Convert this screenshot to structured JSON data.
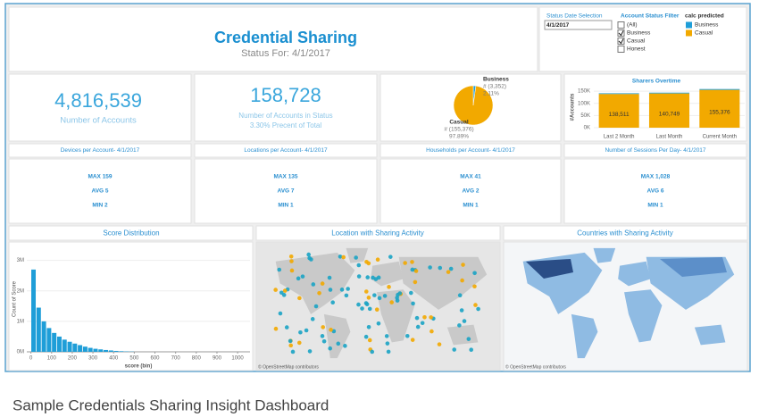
{
  "header": {
    "title": "Credential Sharing",
    "subtitle": "Status For: 4/1/2017"
  },
  "filters": {
    "date_label": "Status Date Selection",
    "date_value": "4/1/2017",
    "status_label": "Account Status Filter",
    "status_options": [
      "(All)",
      "Business",
      "Casual",
      "Honest"
    ],
    "status_checked": [
      false,
      true,
      true,
      false
    ],
    "legend_label": "calc predicted",
    "legend_items": [
      {
        "name": "Business",
        "color": "#1f9ed8"
      },
      {
        "name": "Casual",
        "color": "#f2a900"
      }
    ]
  },
  "kpis": [
    {
      "value": "4,816,539",
      "label": "Number of Accounts"
    },
    {
      "value": "158,728",
      "label": "Number of Accounts in Status",
      "sub": "3.30% Precent of Total"
    }
  ],
  "stats": [
    {
      "title": "Devices per Account- 4/1/2017",
      "max": "MAX 159",
      "avg": "AVG 5",
      "min": "MIN 2"
    },
    {
      "title": "Locations per Account- 4/1/2017",
      "max": "MAX 135",
      "avg": "AVG 7",
      "min": "MIN 1"
    },
    {
      "title": "Households per Account- 4/1/2017",
      "max": "MAX 41",
      "avg": "AVG 2",
      "min": "MIN 1"
    },
    {
      "title": "Number of Sessions Per Day- 4/1/2017",
      "max": "MAX 1,028",
      "avg": "AVG 6",
      "min": "MIN 1"
    }
  ],
  "chart_data": [
    {
      "type": "pie",
      "categories": [
        "Business",
        "Casual"
      ],
      "values": [
        3352,
        155376
      ],
      "value_labels": [
        "# (3,352)",
        "# (155,376)"
      ],
      "percent_labels": [
        "2.11%",
        "97.89%"
      ],
      "colors": [
        "#1f9ed8",
        "#f2a900"
      ]
    },
    {
      "type": "bar",
      "title": "Sharers Overtime",
      "y_label": "#Accounts",
      "stacked": true,
      "categories": [
        "Last 2 Month",
        "Last Month",
        "Current Month"
      ],
      "series": [
        {
          "name": "Casual",
          "color": "#f2a900",
          "values": [
            138511,
            140749,
            155376
          ],
          "value_labels": [
            "138,511",
            "140,749",
            "155,376"
          ]
        },
        {
          "name": "Business",
          "color": "#1f9ed8",
          "values": [
            3000,
            3200,
            3352
          ]
        }
      ],
      "ylim": [
        0,
        165000
      ],
      "yticks": [
        {
          "value": 0,
          "label": "0K"
        },
        {
          "value": 50000,
          "label": "50K"
        },
        {
          "value": 100000,
          "label": "100K"
        },
        {
          "value": 150000,
          "label": "150K"
        }
      ]
    },
    {
      "type": "histogram",
      "title": "Score Distribution",
      "x_label": "score (bin)",
      "y_label": "Count of Score",
      "color": "#1f9ed8",
      "bins": [
        0,
        25,
        50,
        75,
        100,
        125,
        150,
        175,
        200,
        225,
        250,
        275,
        300,
        325,
        350,
        375,
        400,
        425,
        450,
        475,
        500
      ],
      "values": [
        2700000,
        1450000,
        1000000,
        780000,
        620000,
        500000,
        400000,
        330000,
        270000,
        220000,
        170000,
        130000,
        100000,
        80000,
        60000,
        45000,
        30000,
        20000,
        12000,
        8000
      ],
      "xlim": [
        -20,
        1060
      ],
      "xticks": [
        0,
        100,
        200,
        300,
        400,
        500,
        600,
        700,
        800,
        900,
        1000
      ],
      "ylim": [
        0,
        3400000
      ],
      "yticks": [
        {
          "value": 0,
          "label": "0M"
        },
        {
          "value": 1000000,
          "label": "1M"
        },
        {
          "value": 2000000,
          "label": "2M"
        },
        {
          "value": 3000000,
          "label": "3M"
        }
      ]
    }
  ],
  "maps": [
    {
      "title": "Location with Sharing Activity",
      "credit": "© OpenStreetMap contributors"
    },
    {
      "title": "Countries with Sharing Activity",
      "credit": "© OpenStreetMap contributors"
    }
  ],
  "caption": "Sample Credentials Sharing Insight Dashboard"
}
